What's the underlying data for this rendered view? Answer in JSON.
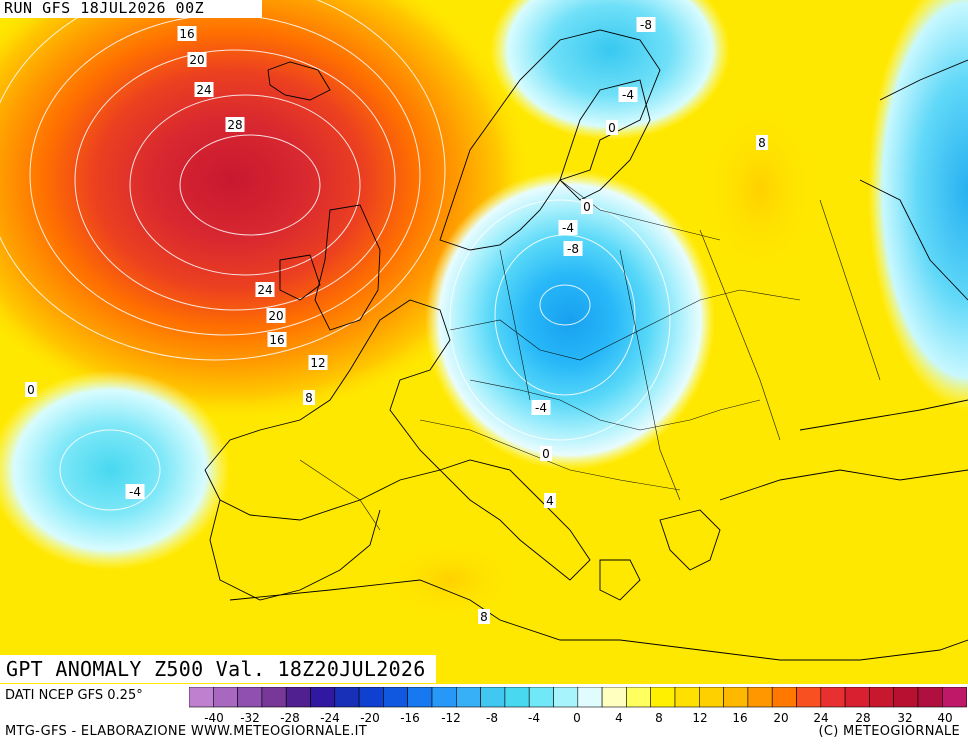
{
  "header": {
    "run_label": "RUN GFS 18JUL2026 00Z"
  },
  "title": "GPT ANOMALY Z500 Val. 18Z20JUL2026",
  "footer": {
    "data_source": "DATI NCEP GFS 0.25°",
    "credit_left": "MTG-GFS - ELABORAZIONE WWW.METEOGIORNALE.IT",
    "credit_right": "(C) METEOGIORNALE"
  },
  "colorbar": {
    "colors": [
      "#c080d0",
      "#a868c0",
      "#9050b0",
      "#783898",
      "#502090",
      "#3018a0",
      "#1830b8",
      "#1040d0",
      "#1058e0",
      "#1878f0",
      "#2898f8",
      "#38b0f8",
      "#40c8f0",
      "#48d8f0",
      "#70e8f8",
      "#a8f4fc",
      "#e0fcff",
      "#ffffc0",
      "#ffff60",
      "#fff000",
      "#ffe000",
      "#ffd000",
      "#ffb800",
      "#ff9800",
      "#ff7800",
      "#f85020",
      "#e83030",
      "#d82030",
      "#c81830",
      "#b81030",
      "#b01040",
      "#c01868"
    ],
    "tick_labels": [
      "-40",
      "-32",
      "-28",
      "-24",
      "-20",
      "-16",
      "-12",
      "-8",
      "-4",
      "0",
      "4",
      "8",
      "12",
      "16",
      "20",
      "24",
      "28",
      "32",
      "40"
    ]
  },
  "contour_labels": [
    "-8",
    "-4",
    "0",
    "8",
    "-4",
    "-8",
    "0",
    "16",
    "20",
    "24",
    "28",
    "24",
    "20",
    "16",
    "12",
    "8",
    "0",
    "-4",
    "-4",
    "0",
    "4",
    "8"
  ],
  "icons": [
    "map-contours"
  ],
  "colors": {
    "background_yellow": "#ffe800",
    "high_red": "#c81830",
    "low_blue": "#20a8f0"
  }
}
